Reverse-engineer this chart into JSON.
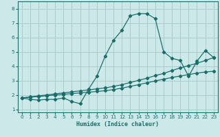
{
  "xlabel": "Humidex (Indice chaleur)",
  "ylabel": "",
  "background_color": "#cce8e8",
  "grid_color": "#aacccc",
  "line_color": "#1a6e6a",
  "xlim": [
    -0.5,
    23.5
  ],
  "ylim": [
    0.8,
    8.5
  ],
  "xticks": [
    0,
    1,
    2,
    3,
    4,
    5,
    6,
    7,
    8,
    9,
    10,
    11,
    12,
    13,
    14,
    15,
    16,
    17,
    18,
    19,
    20,
    21,
    22,
    23
  ],
  "yticks": [
    1,
    2,
    3,
    4,
    5,
    6,
    7,
    8
  ],
  "line1_x": [
    0,
    1,
    2,
    3,
    4,
    5,
    6,
    7,
    8,
    9,
    10,
    11,
    12,
    13,
    14,
    15,
    16,
    17,
    18,
    19,
    20,
    21,
    22,
    23
  ],
  "line1_y": [
    1.8,
    1.7,
    1.65,
    1.7,
    1.7,
    1.8,
    1.55,
    1.4,
    2.4,
    3.3,
    4.7,
    5.8,
    6.5,
    7.5,
    7.65,
    7.65,
    7.3,
    5.0,
    4.55,
    4.4,
    3.3,
    4.35,
    5.1,
    4.6
  ],
  "line2_x": [
    0,
    1,
    2,
    3,
    4,
    5,
    6,
    7,
    8,
    9,
    10,
    11,
    12,
    13,
    14,
    15,
    16,
    17,
    18,
    19,
    20,
    21,
    22,
    23
  ],
  "line2_y": [
    1.8,
    1.87,
    1.94,
    2.01,
    2.08,
    2.15,
    2.22,
    2.29,
    2.36,
    2.43,
    2.5,
    2.6,
    2.72,
    2.87,
    3.02,
    3.17,
    3.35,
    3.5,
    3.7,
    3.88,
    4.05,
    4.2,
    4.4,
    4.6
  ],
  "line3_x": [
    0,
    1,
    2,
    3,
    4,
    5,
    6,
    7,
    8,
    9,
    10,
    11,
    12,
    13,
    14,
    15,
    16,
    17,
    18,
    19,
    20,
    21,
    22,
    23
  ],
  "line3_y": [
    1.8,
    1.85,
    1.9,
    1.95,
    2.0,
    2.05,
    2.1,
    2.15,
    2.2,
    2.25,
    2.3,
    2.38,
    2.48,
    2.6,
    2.72,
    2.85,
    2.98,
    3.1,
    3.22,
    3.32,
    3.42,
    3.52,
    3.6,
    3.65
  ]
}
